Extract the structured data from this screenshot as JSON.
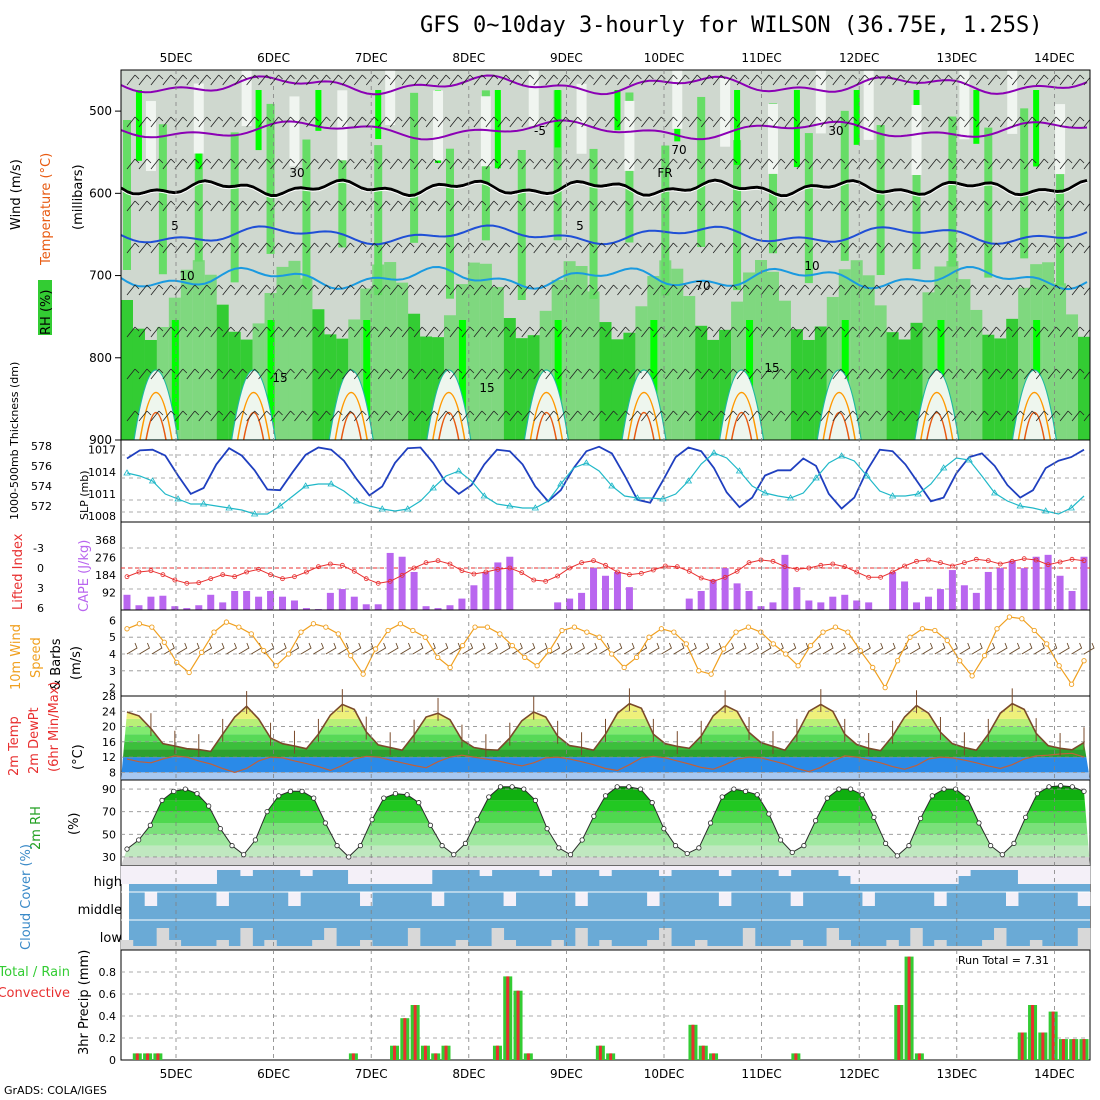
{
  "title": "GFS 0~10day 3-hourly for WILSON (36.75E, 1.25S)",
  "credit": "GrADS: COLA/IGES",
  "dates": [
    "5DEC",
    "6DEC",
    "7DEC",
    "8DEC",
    "9DEC",
    "10DEC",
    "11DEC",
    "12DEC",
    "13DEC",
    "14DEC"
  ],
  "colors": {
    "rh_green": "#33cc33",
    "rh_bright": "#00ff00",
    "temp_neg": "#8b00b5",
    "temp_pos": "#1f4fd6",
    "temp_10": "#1a9ae0",
    "temp_15": "#20b8a0",
    "temp_20": "#ff9900",
    "temp_25": "#e85a10",
    "slp": "#1f3fbf",
    "thick": "#20b8c8",
    "cape": "#b966ef",
    "li": "#e83030",
    "wind": "#f0a020",
    "temp2m": "#e8e878",
    "dew": "#2a8ae8",
    "cloud": "#6aaad6",
    "precip_total": "#33cc33",
    "precip_conv": "#e83030"
  },
  "chart_data": [
    {
      "panel": "upper_air",
      "type": "heatmap",
      "ylabel_parts": [
        "RH (%)",
        "Temperature (°C)",
        "Wind (m/s)"
      ],
      "ylabel2": "(millibars)",
      "y_ticks": [
        "500",
        "600",
        "700",
        "800",
        "900"
      ],
      "ylim": [
        450,
        900
      ],
      "contour_labels": [
        "-5",
        "FR",
        "5",
        "5",
        "10",
        "10",
        "15",
        "15",
        "15",
        "30",
        "30",
        "70",
        "70"
      ]
    },
    {
      "panel": "slp_thickness",
      "type": "line",
      "ylabel_left": "1000-500mb Thickness (dm)",
      "ylabel_right": "SLP (mb)",
      "thick_ticks": [
        "572",
        "574",
        "576",
        "578"
      ],
      "slp_ticks": [
        "1008",
        "1011",
        "1014",
        "1017"
      ],
      "series": [
        {
          "name": "SLP (mb)",
          "values": [
            1015.8,
            1016.9,
            1017.0,
            1016.2,
            1013.5,
            1011.0,
            1011.8,
            1015.0,
            1017.2,
            1016.2,
            1014.2,
            1011.6,
            1011.5,
            1014.0,
            1016.3,
            1017.3,
            1017.0,
            1015.5,
            1013.0,
            1010.8,
            1012.0,
            1015.2,
            1017.2,
            1017.3,
            1015.2,
            1012.5,
            1011.0,
            1012.2,
            1015.0,
            1017.0,
            1016.8,
            1015.0,
            1012.0,
            1010.0,
            1011.5,
            1014.5,
            1016.8,
            1017.4,
            1016.5,
            1013.5,
            1010.2,
            1009.8,
            1012.8,
            1016.0,
            1017.3,
            1016.8,
            1014.5,
            1011.2,
            1009.2,
            1010.5,
            1013.5,
            1014.2,
            1014.2,
            1015.8,
            1014.8,
            1011.0,
            1009.0,
            1010.5,
            1014.2,
            1017.0,
            1016.8,
            1015.0,
            1012.5,
            1010.0,
            1010.5,
            1013.8,
            1016.0,
            1016.5,
            1014.8,
            1012.2,
            1010.5,
            1011.5,
            1014.5,
            1015.5,
            1016.0,
            1017.0
          ]
        },
        {
          "name": "1000-500mb Thickness (dm)",
          "values": [
            575.3,
            575.0,
            574.5,
            573.2,
            572.7,
            572.2,
            572.2,
            572.0,
            571.8,
            571.6,
            571.2,
            571.2,
            572.0,
            573.0,
            574.0,
            574.2,
            574.2,
            573.5,
            572.5,
            572.0,
            571.7,
            571.5,
            571.7,
            572.5,
            573.8,
            575.0,
            575.5,
            574.5,
            573.0,
            572.2,
            572.0,
            571.8,
            571.8,
            572.5,
            574.2,
            575.8,
            576.3,
            575.5,
            574.0,
            573.0,
            572.8,
            572.8,
            572.7,
            573.2,
            574.5,
            576.2,
            577.3,
            576.8,
            575.5,
            574.0,
            573.3,
            573.0,
            572.8,
            573.3,
            574.8,
            576.3,
            577.0,
            576.5,
            575.0,
            573.5,
            573.0,
            573.0,
            573.2,
            574.2,
            575.8,
            576.8,
            576.6,
            575.0,
            573.3,
            572.5,
            572.0,
            571.8,
            571.5,
            571.2,
            571.8,
            573.0
          ]
        }
      ]
    },
    {
      "panel": "cape_li",
      "type": "bar",
      "ylabel_left": "Lifted Index",
      "ylabel_right": "CAPE (J/kg)",
      "li_ticks": [
        "-3",
        "0",
        "3",
        "6"
      ],
      "cape_ticks": [
        "92",
        "184",
        "276",
        "368"
      ],
      "series": [
        {
          "name": "CAPE (J/kg)",
          "values": [
            80,
            25,
            70,
            75,
            20,
            10,
            25,
            80,
            40,
            100,
            100,
            70,
            100,
            70,
            50,
            10,
            5,
            90,
            110,
            70,
            30,
            30,
            300,
            280,
            200,
            20,
            10,
            25,
            60,
            130,
            200,
            250,
            280,
            0,
            0,
            0,
            40,
            60,
            90,
            220,
            180,
            200,
            120,
            0,
            0,
            0,
            0,
            60,
            100,
            160,
            220,
            140,
            100,
            20,
            40,
            290,
            120,
            50,
            40,
            70,
            80,
            50,
            40,
            0,
            200,
            150,
            40,
            70,
            110,
            210,
            130,
            90,
            200,
            220,
            260,
            220,
            280,
            290,
            180,
            100,
            280
          ]
        },
        {
          "name": "Lifted Index",
          "values": [
            1.3,
            0.6,
            0.4,
            1.0,
            1.8,
            2.3,
            2.2,
            1.6,
            1.0,
            1.3,
            0.6,
            0.2,
            1.0,
            1.6,
            1.3,
            0.6,
            -0.2,
            -0.6,
            -0.4,
            0.5,
            1.6,
            2.3,
            2.0,
            1.1,
            0.0,
            -0.8,
            -1.1,
            -0.6,
            0.4,
            0.9,
            0.6,
            0.2,
            0.0,
            0.7,
            1.8,
            2.0,
            1.2,
            0.0,
            -0.8,
            -1.1,
            -0.4,
            0.6,
            1.0,
            0.8,
            0.3,
            -0.3,
            -0.2,
            0.5,
            1.5,
            2.0,
            1.4,
            0.5,
            -0.8,
            -1.2,
            -1.0,
            -0.2,
            0.2,
            0.0,
            -0.4,
            -0.6,
            -0.2,
            0.6,
            1.4,
            1.4,
            0.6,
            -0.3,
            -1.0,
            -1.2,
            -0.8,
            -0.3,
            -0.8,
            -1.3,
            -1.1,
            -0.6,
            -1.0,
            -1.4,
            -1.2,
            -0.5,
            -0.9,
            -1.3,
            -1.1
          ]
        }
      ]
    },
    {
      "panel": "wind10m",
      "type": "line",
      "ylabel_parts": [
        "10m Wind",
        "Speed",
        "& Barbs",
        "(m/s)"
      ],
      "y_ticks": [
        "2",
        "3",
        "4",
        "5",
        "6"
      ],
      "series": [
        {
          "name": "10m Wind Speed",
          "values": [
            5.5,
            5.8,
            5.6,
            4.7,
            3.5,
            2.9,
            4.1,
            5.3,
            5.9,
            5.6,
            5.2,
            4.2,
            3.3,
            4.0,
            5.3,
            5.8,
            5.6,
            5.2,
            3.9,
            2.8,
            4.3,
            5.4,
            5.8,
            5.4,
            5.0,
            3.8,
            3.2,
            4.5,
            5.6,
            5.6,
            5.2,
            4.5,
            3.8,
            3.3,
            4.2,
            5.4,
            5.6,
            5.3,
            5.0,
            4.0,
            3.2,
            3.8,
            5.0,
            5.5,
            5.3,
            4.6,
            3.0,
            2.8,
            4.3,
            5.3,
            5.6,
            5.3,
            4.6,
            4.0,
            3.3,
            4.5,
            5.3,
            5.6,
            5.3,
            4.2,
            3.2,
            2.0,
            3.6,
            5.0,
            5.5,
            5.4,
            4.8,
            3.6,
            2.7,
            3.9,
            5.5,
            6.2,
            6.1,
            5.4,
            4.6,
            3.3,
            2.2,
            3.6
          ]
        }
      ]
    },
    {
      "panel": "temp2m",
      "type": "area",
      "ylabel_parts": [
        "2m Temp",
        "2m DewPt",
        "(6hr Min/Max)",
        "(°C)"
      ],
      "y_ticks": [
        "8",
        "12",
        "16",
        "20",
        "24",
        "28"
      ],
      "series": [
        {
          "name": "2m Temp",
          "values": [
            23.8,
            22.8,
            19.5,
            15.5,
            14.9,
            14.2,
            14.0,
            13.5,
            18.0,
            22.5,
            25.3,
            22.0,
            17.0,
            15.5,
            14.9,
            14.2,
            18.0,
            23.0,
            25.8,
            24.5,
            18.6,
            15.2,
            14.5,
            13.8,
            17.8,
            22.5,
            23.5,
            21.8,
            16.5,
            14.5,
            14.0,
            13.8,
            17.0,
            21.5,
            23.8,
            22.5,
            17.5,
            15.0,
            14.5,
            13.8,
            18.0,
            23.5,
            26.0,
            24.8,
            18.0,
            15.5,
            14.8,
            14.3,
            17.5,
            22.8,
            25.5,
            24.0,
            18.5,
            15.8,
            14.8,
            13.8,
            18.0,
            24.0,
            25.8,
            24.0,
            18.0,
            15.3,
            14.3,
            13.7,
            17.5,
            22.5,
            25.5,
            23.5,
            18.5,
            15.5,
            14.5,
            13.8,
            18.0,
            23.5,
            26.0,
            24.5,
            18.2,
            15.0,
            14.3,
            13.9,
            15.8
          ]
        },
        {
          "name": "2m DewPt",
          "values": [
            11.5,
            10.8,
            10.5,
            11.5,
            12.3,
            12.0,
            11.0,
            10.2,
            9.0,
            8.0,
            9.0,
            11.0,
            12.0,
            11.8,
            11.0,
            10.3,
            9.5,
            8.5,
            9.8,
            11.5,
            12.2,
            12.0,
            11.2,
            10.5,
            9.8,
            9.2,
            10.8,
            12.0,
            12.5,
            12.0,
            11.5,
            11.0,
            10.3,
            9.7,
            10.5,
            11.8,
            12.0,
            11.5,
            10.8,
            10.0,
            9.0,
            8.5,
            10.0,
            11.8,
            12.2,
            11.8,
            11.0,
            10.2,
            9.3,
            8.8,
            10.0,
            11.5,
            12.0,
            11.8,
            11.0,
            10.2,
            9.0,
            8.2,
            9.3,
            11.0,
            12.3,
            12.0,
            11.2,
            10.5,
            9.5,
            8.8,
            9.8,
            11.5,
            12.0,
            11.8,
            11.2,
            10.5,
            9.7,
            9.0,
            10.0,
            11.5,
            12.3,
            12.5,
            12.8,
            13.0,
            12.0
          ]
        }
      ]
    },
    {
      "panel": "rh2m",
      "type": "area",
      "ylabel_parts": [
        "2m RH",
        "(%)"
      ],
      "y_ticks": [
        "30",
        "50",
        "70",
        "90"
      ],
      "series": [
        {
          "name": "2m RH",
          "values": [
            37,
            45,
            58,
            80,
            88,
            90,
            86,
            75,
            55,
            40,
            32,
            45,
            70,
            84,
            88,
            88,
            82,
            60,
            40,
            30,
            40,
            63,
            82,
            86,
            85,
            78,
            58,
            40,
            32,
            42,
            63,
            83,
            92,
            92,
            90,
            80,
            55,
            38,
            32,
            45,
            66,
            84,
            92,
            92,
            90,
            78,
            55,
            40,
            33,
            38,
            60,
            83,
            90,
            88,
            85,
            68,
            45,
            34,
            40,
            62,
            82,
            90,
            90,
            85,
            65,
            42,
            31,
            40,
            64,
            84,
            90,
            90,
            82,
            60,
            40,
            32,
            42,
            65,
            86,
            92,
            93,
            92,
            88
          ]
        }
      ]
    },
    {
      "panel": "cloud",
      "type": "heatmap",
      "ylabel": "Cloud Cover (%)",
      "rows": [
        "high",
        "middle",
        "low"
      ]
    },
    {
      "panel": "precip",
      "type": "bar",
      "ylabel": "3hr Precip (mm)",
      "ylabel_left": [
        "Total / Rain",
        "Convective"
      ],
      "y_ticks": [
        "0",
        "0.2",
        "0.4",
        "0.6",
        "0.8"
      ],
      "ylim": [
        0,
        1.0
      ],
      "annotation": "Run Total = 7.31",
      "series": [
        {
          "name": "Total / Rain",
          "values": [
            0,
            0.06,
            0.06,
            0.06,
            0,
            0,
            0,
            0,
            0,
            0,
            0,
            0,
            0,
            0,
            0,
            0,
            0,
            0,
            0,
            0,
            0,
            0,
            0.06,
            0,
            0,
            0,
            0.13,
            0.38,
            0.5,
            0.13,
            0.06,
            0.13,
            0,
            0,
            0,
            0,
            0.13,
            0.76,
            0.63,
            0.06,
            0,
            0,
            0,
            0,
            0,
            0,
            0.13,
            0.06,
            0,
            0,
            0,
            0,
            0,
            0,
            0,
            0.32,
            0.13,
            0.06,
            0,
            0,
            0,
            0,
            0,
            0,
            0,
            0.06,
            0,
            0,
            0,
            0,
            0,
            0,
            0,
            0,
            0,
            0.5,
            0.94,
            0.06,
            0,
            0,
            0,
            0,
            0,
            0,
            0,
            0,
            0,
            0.25,
            0.5,
            0.25,
            0.44,
            0.19,
            0.19,
            0.19
          ]
        }
      ]
    }
  ]
}
